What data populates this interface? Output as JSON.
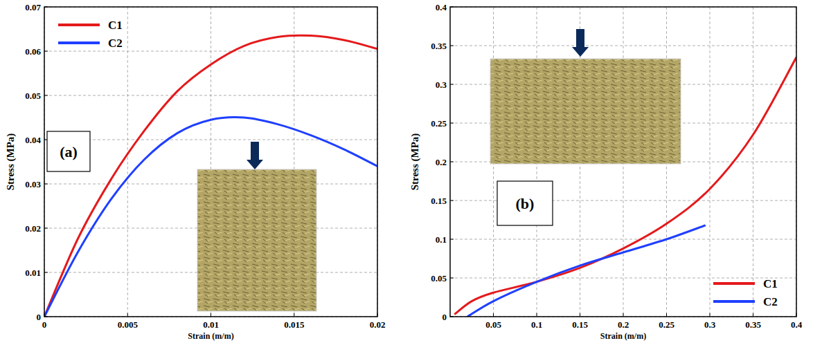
{
  "chart_data": [
    {
      "type": "line",
      "annotations": [
        "(a)"
      ],
      "x_label": "Strain (m/m)",
      "y_label": "Stress (MPa)",
      "x": [
        0,
        0.002,
        0.004,
        0.006,
        0.008,
        0.01,
        0.012,
        0.014,
        0.016,
        0.018,
        0.02
      ],
      "series": [
        {
          "name": "C1",
          "color": "#e41a1c",
          "values": [
            0,
            0.0175,
            0.031,
            0.042,
            0.051,
            0.057,
            0.0612,
            0.0632,
            0.0635,
            0.0625,
            0.0605
          ]
        },
        {
          "name": "C2",
          "color": "#1f3fff",
          "values": [
            0,
            0.0145,
            0.0265,
            0.0355,
            0.0415,
            0.0445,
            0.045,
            0.0435,
            0.041,
            0.0378,
            0.034
          ]
        }
      ],
      "xlim": [
        0,
        0.02
      ],
      "xticks": [
        0,
        0.005,
        0.01,
        0.015,
        0.02
      ],
      "ylim": [
        0,
        0.07
      ],
      "yticks": [
        0,
        0.01,
        0.02,
        0.03,
        0.04,
        0.05,
        0.06,
        0.07
      ],
      "grid": true,
      "legend": "upper left"
    },
    {
      "type": "line",
      "annotations": [
        "(b)"
      ],
      "x_label": "Strain (m/m)",
      "y_label": "Stress (MPa)",
      "series": [
        {
          "name": "C1",
          "color": "#e41a1c",
          "x": [
            0.005,
            0.025,
            0.05,
            0.1,
            0.15,
            0.2,
            0.25,
            0.3,
            0.35,
            0.4
          ],
          "values": [
            0.003,
            0.02,
            0.031,
            0.045,
            0.063,
            0.088,
            0.12,
            0.165,
            0.235,
            0.335
          ]
        },
        {
          "name": "C2",
          "color": "#1f3fff",
          "x": [
            0.02,
            0.05,
            0.1,
            0.15,
            0.2,
            0.25,
            0.295
          ],
          "values": [
            0,
            0.02,
            0.045,
            0.066,
            0.083,
            0.1,
            0.118
          ]
        }
      ],
      "xlim": [
        0,
        0.4
      ],
      "xticks": [
        0.05,
        0.1,
        0.15,
        0.2,
        0.25,
        0.3,
        0.35,
        0.4
      ],
      "ylim": [
        0,
        0.4
      ],
      "yticks": [
        0,
        0.05,
        0.1,
        0.15,
        0.2,
        0.25,
        0.3,
        0.35,
        0.4
      ],
      "grid": true,
      "legend": "lower right"
    }
  ]
}
